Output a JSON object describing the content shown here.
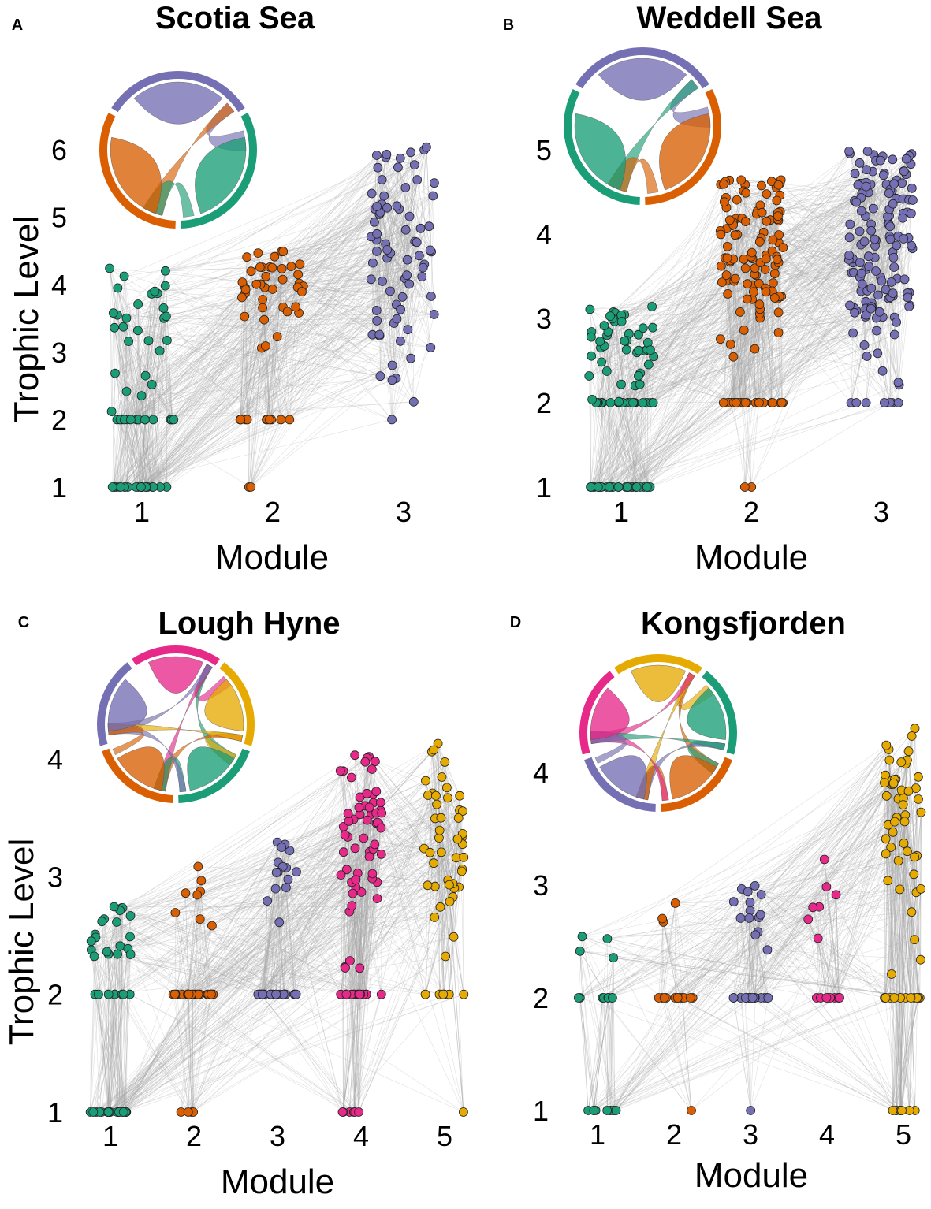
{
  "figure": {
    "palette": {
      "m1": "#1b9e77",
      "m2": "#d95f02",
      "m3": "#7570b3",
      "m4": "#e7298a",
      "m5": "#e6ab02",
      "edge": "#a6a6a6"
    }
  },
  "chart_data": [
    {
      "type": "scatter",
      "letter": "A",
      "title": "Scotia Sea",
      "xlabel": "Module",
      "ylabel": "Trophic Level",
      "categories": [
        "1",
        "2",
        "3"
      ],
      "yticks": [
        "1",
        "2",
        "3",
        "4",
        "5",
        "6"
      ],
      "ylim": [
        1,
        6
      ],
      "series": [
        {
          "module": 1,
          "color": "m1",
          "n_basal": 22,
          "n_level2": 16,
          "n_upper": 28,
          "upper_range": [
            2.1,
            4.3
          ]
        },
        {
          "module": 2,
          "color": "m2",
          "n_basal": 2,
          "n_level2": 10,
          "n_upper": 40,
          "upper_range": [
            3.0,
            4.5
          ]
        },
        {
          "module": 3,
          "color": "m3",
          "n_basal": 0,
          "n_level2": 1,
          "n_upper": 75,
          "upper_range": [
            2.2,
            6.05
          ]
        }
      ],
      "chord_modules": [
        3,
        1,
        2
      ]
    },
    {
      "type": "scatter",
      "letter": "B",
      "title": "Weddell Sea",
      "xlabel": "Module",
      "ylabel": "",
      "categories": [
        "1",
        "2",
        "3"
      ],
      "yticks": [
        "1",
        "2",
        "3",
        "4",
        "5"
      ],
      "ylim": [
        1,
        5
      ],
      "series": [
        {
          "module": 1,
          "color": "m1",
          "n_basal": 30,
          "n_level2": 25,
          "n_upper": 45,
          "upper_range": [
            2.0,
            3.15
          ]
        },
        {
          "module": 2,
          "color": "m2",
          "n_basal": 2,
          "n_level2": 30,
          "n_upper": 110,
          "upper_range": [
            2.5,
            4.7
          ]
        },
        {
          "module": 3,
          "color": "m3",
          "n_basal": 0,
          "n_level2": 8,
          "n_upper": 140,
          "upper_range": [
            2.2,
            5.0
          ]
        }
      ],
      "chord_modules": [
        3,
        2,
        1
      ]
    },
    {
      "type": "scatter",
      "letter": "C",
      "title": "Lough Hyne",
      "xlabel": "Module",
      "ylabel": "Trophic Level",
      "categories": [
        "1",
        "2",
        "3",
        "4",
        "5"
      ],
      "yticks": [
        "1",
        "2",
        "3",
        "4"
      ],
      "ylim": [
        1,
        4.2
      ],
      "series": [
        {
          "module": 1,
          "color": "m1",
          "n_basal": 22,
          "n_level2": 8,
          "n_upper": 20,
          "upper_range": [
            2.1,
            2.8
          ]
        },
        {
          "module": 2,
          "color": "m2",
          "n_basal": 4,
          "n_level2": 22,
          "n_upper": 8,
          "upper_range": [
            2.5,
            3.2
          ]
        },
        {
          "module": 3,
          "color": "m3",
          "n_basal": 0,
          "n_level2": 22,
          "n_upper": 15,
          "upper_range": [
            2.6,
            3.3
          ]
        },
        {
          "module": 4,
          "color": "m4",
          "n_basal": 6,
          "n_level2": 14,
          "n_upper": 60,
          "upper_range": [
            2.2,
            4.1
          ]
        },
        {
          "module": 5,
          "color": "m5",
          "n_basal": 1,
          "n_level2": 6,
          "n_upper": 45,
          "upper_range": [
            2.2,
            4.2
          ]
        }
      ],
      "chord_modules": [
        4,
        5,
        1,
        2,
        3
      ]
    },
    {
      "type": "scatter",
      "letter": "D",
      "title": "Kongsfjorden",
      "xlabel": "Module",
      "ylabel": "",
      "categories": [
        "1",
        "2",
        "3",
        "4",
        "5"
      ],
      "yticks": [
        "1",
        "2",
        "3",
        "4"
      ],
      "ylim": [
        1,
        4.4
      ],
      "series": [
        {
          "module": 1,
          "color": "m1",
          "n_basal": 10,
          "n_level2": 8,
          "n_upper": 4,
          "upper_range": [
            2.0,
            2.6
          ]
        },
        {
          "module": 2,
          "color": "m2",
          "n_basal": 1,
          "n_level2": 12,
          "n_upper": 3,
          "upper_range": [
            2.6,
            2.9
          ]
        },
        {
          "module": 3,
          "color": "m3",
          "n_basal": 1,
          "n_level2": 15,
          "n_upper": 14,
          "upper_range": [
            2.4,
            3.0
          ]
        },
        {
          "module": 4,
          "color": "m4",
          "n_basal": 0,
          "n_level2": 9,
          "n_upper": 7,
          "upper_range": [
            2.3,
            3.3
          ]
        },
        {
          "module": 5,
          "color": "m5",
          "n_basal": 8,
          "n_level2": 12,
          "n_upper": 50,
          "upper_range": [
            2.2,
            4.4
          ]
        }
      ],
      "chord_modules": [
        5,
        1,
        2,
        3,
        4
      ]
    }
  ]
}
